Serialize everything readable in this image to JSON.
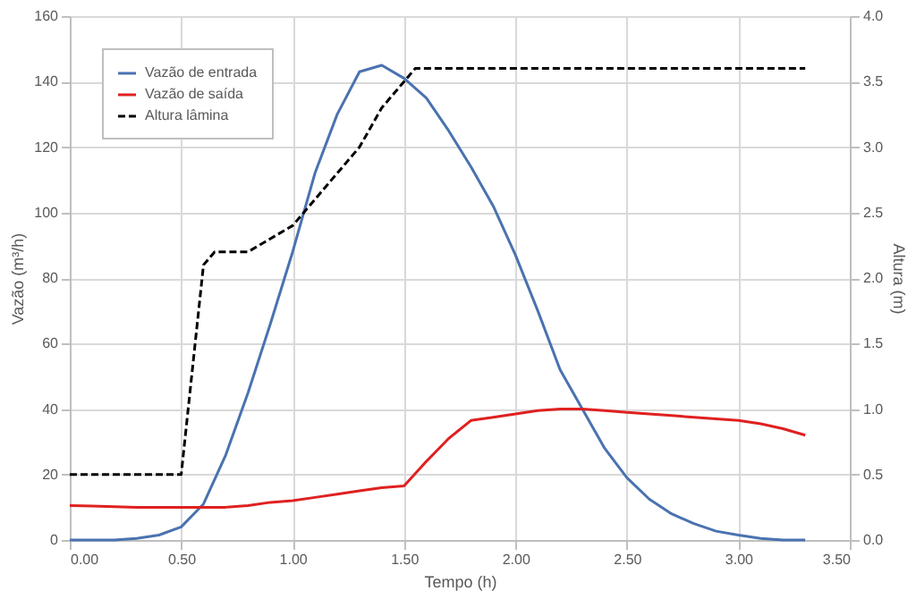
{
  "chart_data": {
    "type": "line",
    "xlabel": "Tempo (h)",
    "ylabel": "Vazão (m³/h)",
    "y2label": "Altura (m)",
    "x": [
      0,
      0.1,
      0.2,
      0.3,
      0.4,
      0.5,
      0.6,
      0.7,
      0.8,
      0.9,
      1.0,
      1.1,
      1.2,
      1.3,
      1.4,
      1.5,
      1.6,
      1.7,
      1.8,
      1.9,
      2.0,
      2.1,
      2.2,
      2.3,
      2.4,
      2.5,
      2.6,
      2.7,
      2.8,
      2.9,
      3.0,
      3.1,
      3.2,
      3.3
    ],
    "series": [
      {
        "name": "Vazão de entrada",
        "color": "#4a72b0",
        "values": [
          0,
          0,
          0,
          0.5,
          1.5,
          4,
          11,
          26,
          45,
          66,
          88,
          112,
          130,
          143,
          145,
          141,
          135,
          125,
          114,
          102,
          87,
          70,
          52,
          40,
          28,
          19,
          12.5,
          8,
          5,
          2.7,
          1.5,
          0.5,
          0,
          0
        ]
      },
      {
        "name": "Vazão de saída",
        "color": "#e02020",
        "values": [
          10.5,
          10.4,
          10.2,
          10,
          10,
          10,
          10,
          10,
          10.5,
          11.5,
          12,
          13,
          14,
          15,
          16,
          16.5,
          24,
          31,
          36.5,
          37.5,
          38.5,
          39.5,
          40,
          40,
          39.5,
          39,
          38.5,
          38,
          37.5,
          37,
          36.5,
          35.5,
          34,
          32
        ]
      },
      {
        "name": "Altura lâmina",
        "color": "#000000",
        "axis": "y2",
        "line_style": "dashed",
        "x": [
          0,
          0.5,
          0.6,
          0.65,
          0.8,
          0.9,
          1.0,
          1.1,
          1.2,
          1.3,
          1.4,
          1.5,
          1.55,
          3.3
        ],
        "values": [
          0.5,
          0.5,
          2.1,
          2.2,
          2.2,
          2.3,
          2.4,
          2.6,
          2.8,
          3.0,
          3.3,
          3.5,
          3.6,
          3.6
        ]
      }
    ],
    "xlim": [
      0,
      3.5
    ],
    "xticks": [
      {
        "value": 0,
        "label": "0.00"
      },
      {
        "value": 0.5,
        "label": "0.50"
      },
      {
        "value": 1,
        "label": "1.00"
      },
      {
        "value": 1.5,
        "label": "1.50"
      },
      {
        "value": 2,
        "label": "2.00"
      },
      {
        "value": 2.5,
        "label": "2.50"
      },
      {
        "value": 3,
        "label": "3.00"
      },
      {
        "value": 3.5,
        "label": "3.50"
      }
    ],
    "ylim": [
      0,
      160
    ],
    "yticks": [
      0,
      20,
      40,
      60,
      80,
      100,
      120,
      140,
      160
    ],
    "y2lim": [
      0,
      4
    ],
    "y2ticks": [
      {
        "value": 0,
        "label": "0.0"
      },
      0.5,
      {
        "value": 1,
        "label": "1.0"
      },
      1.5,
      {
        "value": 2,
        "label": "2.0"
      },
      2.5,
      {
        "value": 3,
        "label": "3.0"
      },
      3.5,
      {
        "value": 4,
        "label": "4.0"
      }
    ],
    "grid": true,
    "legend": "top left",
    "marker": "none",
    "line_style": "solid"
  }
}
